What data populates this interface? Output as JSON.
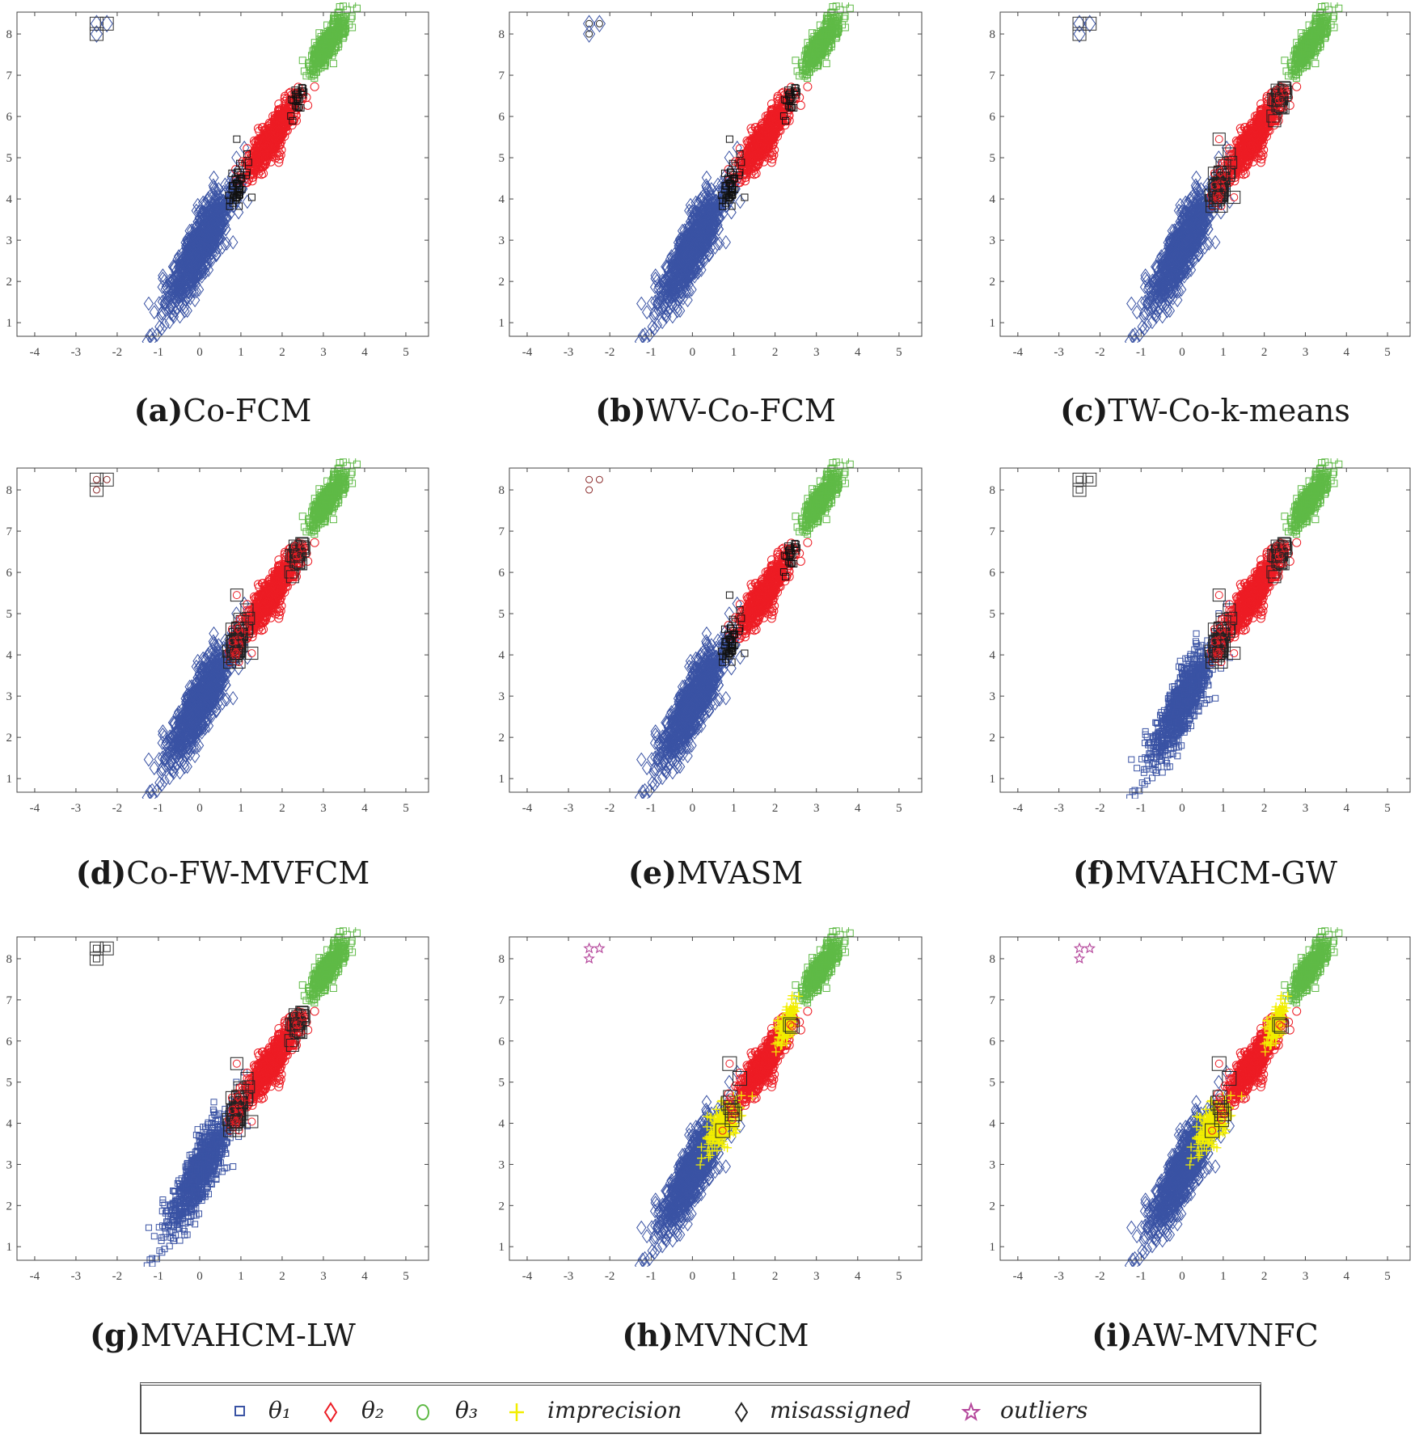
{
  "colors": {
    "theta1": "#3a53a4",
    "theta2": "#ed1c24",
    "theta3": "#5fba46",
    "imprecision": "#f2ee00",
    "misassigned": "#111111",
    "outliers": "#b5489c"
  },
  "legend": {
    "items": [
      {
        "label": "θ₁",
        "marker": "square",
        "color": "#3a53a4"
      },
      {
        "label": "θ₂",
        "marker": "diamond",
        "color": "#ed1c24"
      },
      {
        "label": "θ₃",
        "marker": "circle",
        "color": "#5fba46"
      },
      {
        "label": "imprecision",
        "marker": "plus",
        "color": "#f2ee00"
      },
      {
        "label": "misassigned",
        "marker": "diamond",
        "color": "#222222"
      },
      {
        "label": "outliers",
        "marker": "star",
        "color": "#b5489c"
      }
    ]
  },
  "chart_data": [
    {
      "panel": "a",
      "method": "Co-FCM",
      "type": "scatter",
      "theta1_marker": "diamond",
      "misassigned_style": "small",
      "outlier_style": "boxed-diamond",
      "imprecision": false
    },
    {
      "panel": "b",
      "method": "WV-Co-FCM",
      "type": "scatter",
      "theta1_marker": "diamond",
      "misassigned_style": "small",
      "outlier_style": "circle-diamond",
      "imprecision": false
    },
    {
      "panel": "c",
      "method": "TW-Co-k-means",
      "type": "scatter",
      "theta1_marker": "diamond",
      "misassigned_style": "boxed",
      "outlier_style": "boxed-diamond",
      "imprecision": false
    },
    {
      "panel": "d",
      "method": "Co-FW-MVFCM",
      "type": "scatter",
      "theta1_marker": "diamond",
      "misassigned_style": "boxed",
      "outlier_style": "boxed-circle",
      "imprecision": false
    },
    {
      "panel": "e",
      "method": "MVASM",
      "type": "scatter",
      "theta1_marker": "diamond",
      "misassigned_style": "small",
      "outlier_style": "circle",
      "imprecision": false
    },
    {
      "panel": "f",
      "method": "MVAHCM-GW",
      "type": "scatter",
      "theta1_marker": "square",
      "misassigned_style": "boxed",
      "outlier_style": "boxed-square",
      "imprecision": false
    },
    {
      "panel": "g",
      "method": "MVAHCM-LW",
      "type": "scatter",
      "theta1_marker": "square",
      "misassigned_style": "boxed",
      "outlier_style": "boxed-square",
      "imprecision": false
    },
    {
      "panel": "h",
      "method": "MVNCM",
      "type": "scatter",
      "theta1_marker": "diamond",
      "misassigned_style": "boxed-few",
      "outlier_style": "star",
      "imprecision": true
    },
    {
      "panel": "i",
      "method": "AW-MVNFC",
      "type": "scatter",
      "theta1_marker": "diamond",
      "misassigned_style": "boxed-few",
      "outlier_style": "star",
      "imprecision": true
    }
  ],
  "axes": {
    "xlim": [
      -4.43,
      5.55
    ],
    "ylim": [
      0.67,
      8.53
    ],
    "xticks": [
      -4,
      -3,
      -2,
      -1,
      0,
      1,
      2,
      3,
      4,
      5
    ],
    "yticks": [
      1,
      2,
      3,
      4,
      5,
      6,
      7,
      8
    ],
    "grid": false
  },
  "clusters": {
    "theta1": {
      "mean": [
        0.0,
        2.8
      ],
      "sd": [
        0.4,
        0.75
      ],
      "corr": 0.86
    },
    "theta2": {
      "mean": [
        1.75,
        5.5
      ],
      "sd": [
        0.3,
        0.45
      ],
      "corr": 0.85
    },
    "theta3": {
      "mean": [
        3.1,
        7.75
      ],
      "sd": [
        0.22,
        0.32
      ],
      "corr": 0.8
    },
    "outliers": [
      [
        -2.5,
        8.25
      ],
      [
        -2.25,
        8.25
      ],
      [
        -2.5,
        8.0
      ]
    ],
    "misassigned_regions": [
      {
        "mean": [
          0.95,
          4.25
        ],
        "sd": [
          0.13,
          0.3
        ]
      },
      {
        "mean": [
          2.4,
          6.45
        ],
        "sd": [
          0.1,
          0.2
        ]
      }
    ],
    "imprecision_regions": [
      {
        "mean": [
          0.75,
          4.0
        ],
        "sd": [
          0.2,
          0.3
        ]
      },
      {
        "mean": [
          2.3,
          6.4
        ],
        "sd": [
          0.13,
          0.25
        ]
      }
    ]
  }
}
